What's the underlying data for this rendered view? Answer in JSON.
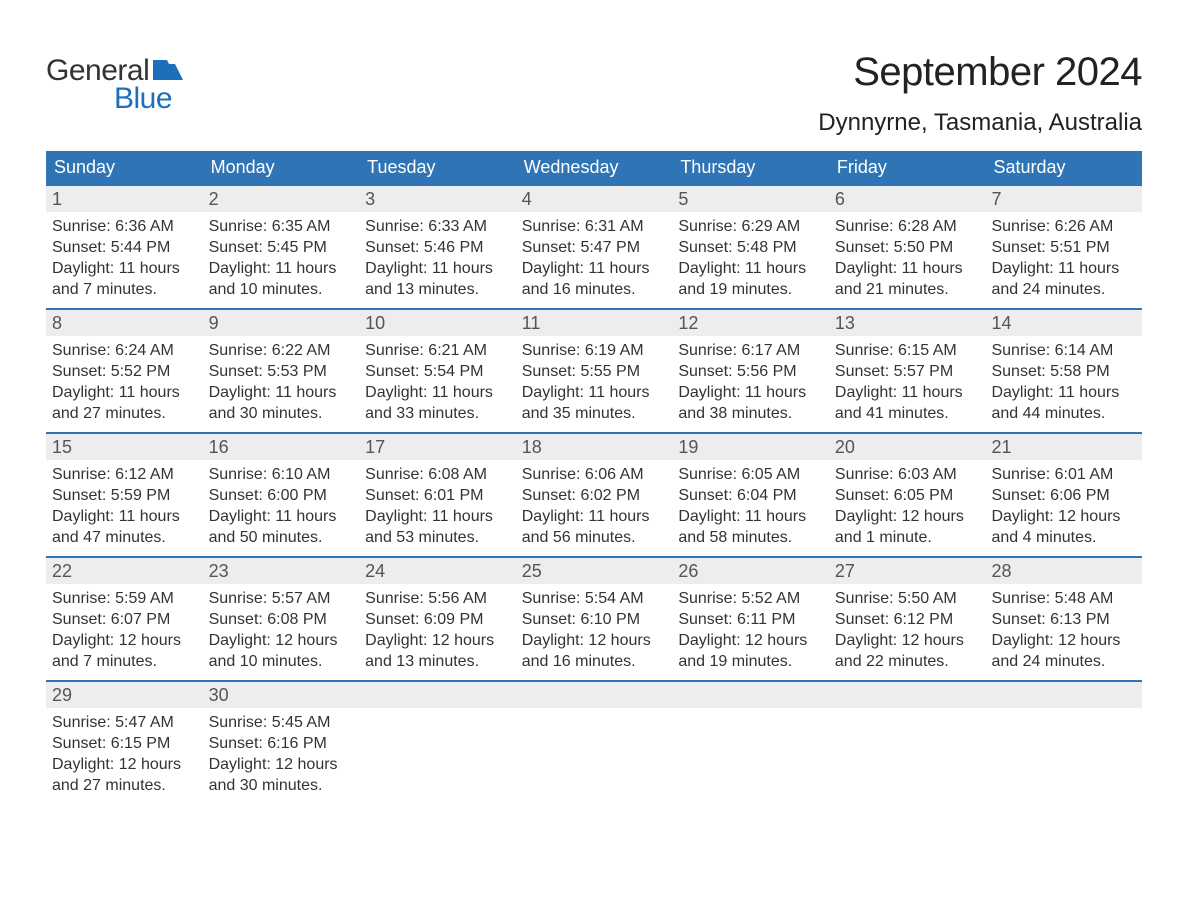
{
  "brand": {
    "line1": "General",
    "line2": "Blue",
    "flag_color": "#1c6fb8"
  },
  "title": "September 2024",
  "location": "Dynnyrne, Tasmania, Australia",
  "colors": {
    "header_bg": "#2f74b5",
    "header_text": "#ffffff",
    "daynum_bg": "#ededed",
    "daynum_text": "#555555",
    "body_text": "#333333",
    "week_border": "#2f74b5",
    "brand_blue": "#1c6fb8",
    "background": "#ffffff"
  },
  "typography": {
    "title_fontsize": 40,
    "location_fontsize": 24,
    "header_fontsize": 18,
    "daynum_fontsize": 18,
    "body_fontsize": 16,
    "logo_fontsize": 30
  },
  "layout": {
    "columns": 7,
    "rows": 5,
    "cell_min_height": 122
  },
  "weekdays": [
    "Sunday",
    "Monday",
    "Tuesday",
    "Wednesday",
    "Thursday",
    "Friday",
    "Saturday"
  ],
  "weeks": [
    [
      {
        "n": "1",
        "sunrise": "Sunrise: 6:36 AM",
        "sunset": "Sunset: 5:44 PM",
        "daylight": "Daylight: 11 hours and 7 minutes."
      },
      {
        "n": "2",
        "sunrise": "Sunrise: 6:35 AM",
        "sunset": "Sunset: 5:45 PM",
        "daylight": "Daylight: 11 hours and 10 minutes."
      },
      {
        "n": "3",
        "sunrise": "Sunrise: 6:33 AM",
        "sunset": "Sunset: 5:46 PM",
        "daylight": "Daylight: 11 hours and 13 minutes."
      },
      {
        "n": "4",
        "sunrise": "Sunrise: 6:31 AM",
        "sunset": "Sunset: 5:47 PM",
        "daylight": "Daylight: 11 hours and 16 minutes."
      },
      {
        "n": "5",
        "sunrise": "Sunrise: 6:29 AM",
        "sunset": "Sunset: 5:48 PM",
        "daylight": "Daylight: 11 hours and 19 minutes."
      },
      {
        "n": "6",
        "sunrise": "Sunrise: 6:28 AM",
        "sunset": "Sunset: 5:50 PM",
        "daylight": "Daylight: 11 hours and 21 minutes."
      },
      {
        "n": "7",
        "sunrise": "Sunrise: 6:26 AM",
        "sunset": "Sunset: 5:51 PM",
        "daylight": "Daylight: 11 hours and 24 minutes."
      }
    ],
    [
      {
        "n": "8",
        "sunrise": "Sunrise: 6:24 AM",
        "sunset": "Sunset: 5:52 PM",
        "daylight": "Daylight: 11 hours and 27 minutes."
      },
      {
        "n": "9",
        "sunrise": "Sunrise: 6:22 AM",
        "sunset": "Sunset: 5:53 PM",
        "daylight": "Daylight: 11 hours and 30 minutes."
      },
      {
        "n": "10",
        "sunrise": "Sunrise: 6:21 AM",
        "sunset": "Sunset: 5:54 PM",
        "daylight": "Daylight: 11 hours and 33 minutes."
      },
      {
        "n": "11",
        "sunrise": "Sunrise: 6:19 AM",
        "sunset": "Sunset: 5:55 PM",
        "daylight": "Daylight: 11 hours and 35 minutes."
      },
      {
        "n": "12",
        "sunrise": "Sunrise: 6:17 AM",
        "sunset": "Sunset: 5:56 PM",
        "daylight": "Daylight: 11 hours and 38 minutes."
      },
      {
        "n": "13",
        "sunrise": "Sunrise: 6:15 AM",
        "sunset": "Sunset: 5:57 PM",
        "daylight": "Daylight: 11 hours and 41 minutes."
      },
      {
        "n": "14",
        "sunrise": "Sunrise: 6:14 AM",
        "sunset": "Sunset: 5:58 PM",
        "daylight": "Daylight: 11 hours and 44 minutes."
      }
    ],
    [
      {
        "n": "15",
        "sunrise": "Sunrise: 6:12 AM",
        "sunset": "Sunset: 5:59 PM",
        "daylight": "Daylight: 11 hours and 47 minutes."
      },
      {
        "n": "16",
        "sunrise": "Sunrise: 6:10 AM",
        "sunset": "Sunset: 6:00 PM",
        "daylight": "Daylight: 11 hours and 50 minutes."
      },
      {
        "n": "17",
        "sunrise": "Sunrise: 6:08 AM",
        "sunset": "Sunset: 6:01 PM",
        "daylight": "Daylight: 11 hours and 53 minutes."
      },
      {
        "n": "18",
        "sunrise": "Sunrise: 6:06 AM",
        "sunset": "Sunset: 6:02 PM",
        "daylight": "Daylight: 11 hours and 56 minutes."
      },
      {
        "n": "19",
        "sunrise": "Sunrise: 6:05 AM",
        "sunset": "Sunset: 6:04 PM",
        "daylight": "Daylight: 11 hours and 58 minutes."
      },
      {
        "n": "20",
        "sunrise": "Sunrise: 6:03 AM",
        "sunset": "Sunset: 6:05 PM",
        "daylight": "Daylight: 12 hours and 1 minute."
      },
      {
        "n": "21",
        "sunrise": "Sunrise: 6:01 AM",
        "sunset": "Sunset: 6:06 PM",
        "daylight": "Daylight: 12 hours and 4 minutes."
      }
    ],
    [
      {
        "n": "22",
        "sunrise": "Sunrise: 5:59 AM",
        "sunset": "Sunset: 6:07 PM",
        "daylight": "Daylight: 12 hours and 7 minutes."
      },
      {
        "n": "23",
        "sunrise": "Sunrise: 5:57 AM",
        "sunset": "Sunset: 6:08 PM",
        "daylight": "Daylight: 12 hours and 10 minutes."
      },
      {
        "n": "24",
        "sunrise": "Sunrise: 5:56 AM",
        "sunset": "Sunset: 6:09 PM",
        "daylight": "Daylight: 12 hours and 13 minutes."
      },
      {
        "n": "25",
        "sunrise": "Sunrise: 5:54 AM",
        "sunset": "Sunset: 6:10 PM",
        "daylight": "Daylight: 12 hours and 16 minutes."
      },
      {
        "n": "26",
        "sunrise": "Sunrise: 5:52 AM",
        "sunset": "Sunset: 6:11 PM",
        "daylight": "Daylight: 12 hours and 19 minutes."
      },
      {
        "n": "27",
        "sunrise": "Sunrise: 5:50 AM",
        "sunset": "Sunset: 6:12 PM",
        "daylight": "Daylight: 12 hours and 22 minutes."
      },
      {
        "n": "28",
        "sunrise": "Sunrise: 5:48 AM",
        "sunset": "Sunset: 6:13 PM",
        "daylight": "Daylight: 12 hours and 24 minutes."
      }
    ],
    [
      {
        "n": "29",
        "sunrise": "Sunrise: 5:47 AM",
        "sunset": "Sunset: 6:15 PM",
        "daylight": "Daylight: 12 hours and 27 minutes."
      },
      {
        "n": "30",
        "sunrise": "Sunrise: 5:45 AM",
        "sunset": "Sunset: 6:16 PM",
        "daylight": "Daylight: 12 hours and 30 minutes."
      },
      {
        "empty": true
      },
      {
        "empty": true
      },
      {
        "empty": true
      },
      {
        "empty": true
      },
      {
        "empty": true
      }
    ]
  ]
}
